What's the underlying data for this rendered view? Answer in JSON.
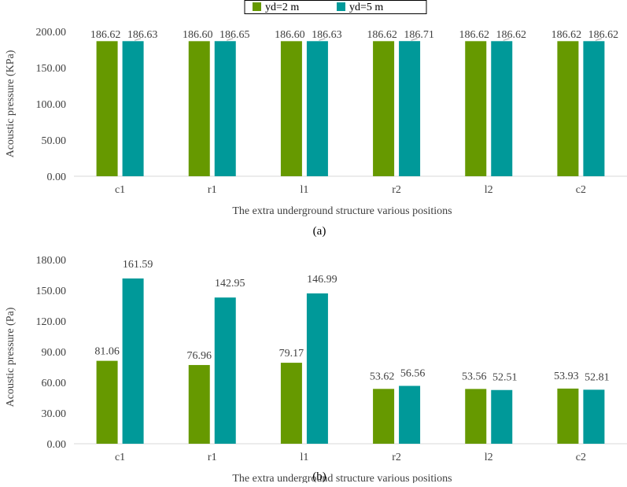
{
  "legend": [
    {
      "name": "yd=2 m",
      "color": "#669900"
    },
    {
      "name": "yd=5 m",
      "color": "#009999"
    }
  ],
  "chart_data": [
    {
      "type": "bar",
      "caption": "(a)",
      "categories": [
        "c1",
        "r1",
        "l1",
        "r2",
        "l2",
        "c2"
      ],
      "xlabel": "The extra underground structure various positions",
      "ylabel": "Acoustic pressure (KPa)",
      "ylim": [
        0,
        200
      ],
      "yticks": [
        "0.00",
        "50.00",
        "100.00",
        "150.00",
        "200.00"
      ],
      "ytick_values": [
        0,
        50,
        100,
        150,
        200
      ],
      "series": [
        {
          "name": "yd=2 m",
          "color": "#669900",
          "values": [
            186.62,
            186.6,
            186.6,
            186.62,
            186.62,
            186.62
          ],
          "labels": [
            "186.62",
            "186.60",
            "186.60",
            "186.62",
            "186.62",
            "186.62"
          ]
        },
        {
          "name": "yd=5 m",
          "color": "#009999",
          "values": [
            186.63,
            186.65,
            186.63,
            186.71,
            186.62,
            186.62
          ],
          "labels": [
            "186.63",
            "186.65",
            "186.63",
            "186.71",
            "186.62",
            "186.62"
          ]
        }
      ]
    },
    {
      "type": "bar",
      "caption": "(b)",
      "categories": [
        "c1",
        "r1",
        "l1",
        "r2",
        "l2",
        "c2"
      ],
      "xlabel": "The extra underground structure various positions",
      "ylabel": "Acoustic pressure (Pa)",
      "ylim": [
        0,
        180
      ],
      "yticks": [
        "0.00",
        "30.00",
        "60.00",
        "90.00",
        "120.00",
        "150.00",
        "180.00"
      ],
      "ytick_values": [
        0,
        30,
        60,
        90,
        120,
        150,
        180
      ],
      "series": [
        {
          "name": "yd=2 m",
          "color": "#669900",
          "values": [
            81.06,
            76.96,
            79.17,
            53.62,
            53.56,
            53.93
          ],
          "labels": [
            "81.06",
            "76.96",
            "79.17",
            "53.62",
            "53.56",
            "53.93"
          ]
        },
        {
          "name": "yd=5 m",
          "color": "#009999",
          "values": [
            161.59,
            142.95,
            146.99,
            56.56,
            52.51,
            52.81
          ],
          "labels": [
            "161.59",
            "142.95",
            "146.99",
            "56.56",
            "52.51",
            "52.81"
          ]
        }
      ]
    }
  ]
}
